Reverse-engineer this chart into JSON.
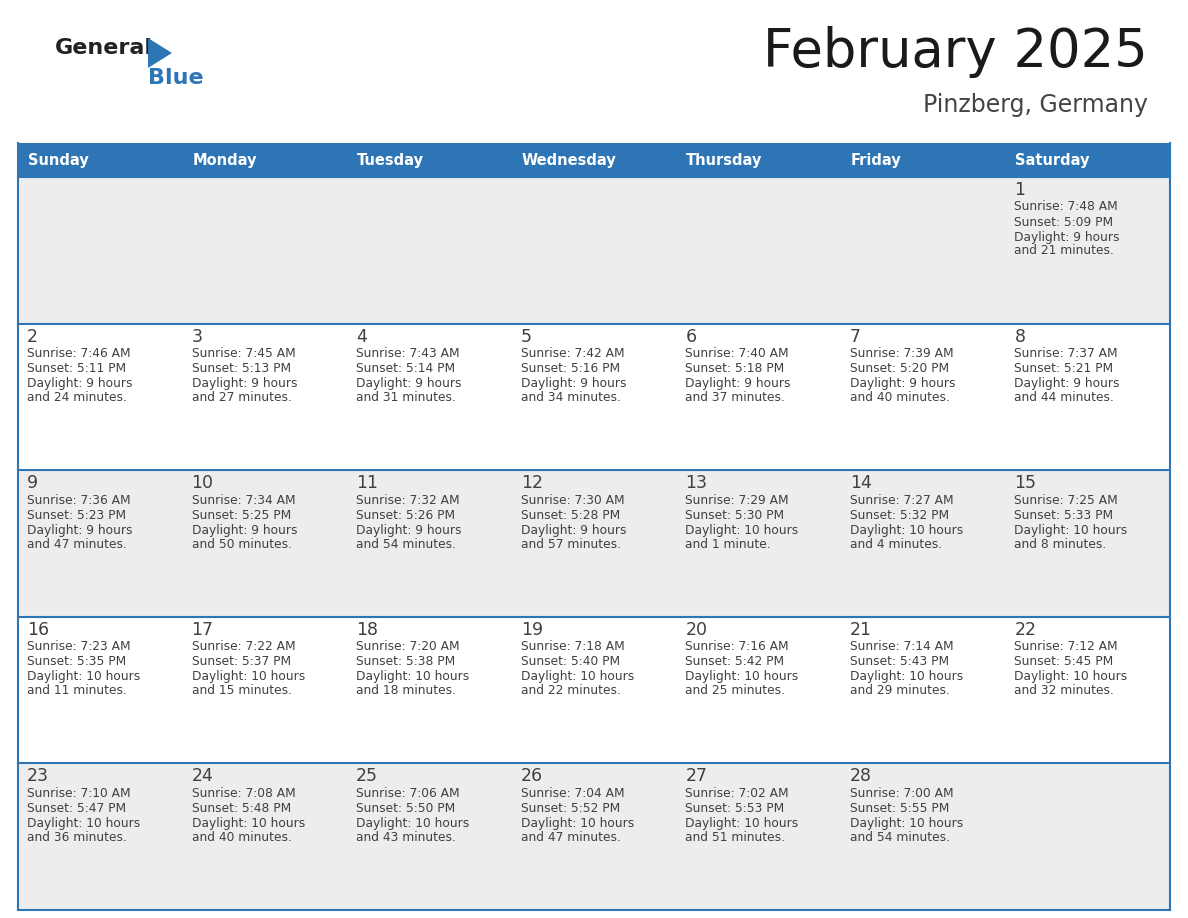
{
  "title": "February 2025",
  "subtitle": "Pinzberg, Germany",
  "header_bg": "#2E75B6",
  "header_text_color": "#FFFFFF",
  "day_names": [
    "Sunday",
    "Monday",
    "Tuesday",
    "Wednesday",
    "Thursday",
    "Friday",
    "Saturday"
  ],
  "cell_bg_odd": "#EDEDED",
  "cell_bg_even": "#FFFFFF",
  "cell_border_color": "#2E75B6",
  "day_num_color": "#404040",
  "info_text_color": "#404040",
  "logo_general_color": "#222222",
  "logo_blue_color": "#2E75B6",
  "calendar": [
    [
      null,
      null,
      null,
      null,
      null,
      null,
      {
        "day": 1,
        "sunrise": "7:48 AM",
        "sunset": "5:09 PM",
        "daylight": "9 hours and 21 minutes."
      }
    ],
    [
      {
        "day": 2,
        "sunrise": "7:46 AM",
        "sunset": "5:11 PM",
        "daylight": "9 hours and 24 minutes."
      },
      {
        "day": 3,
        "sunrise": "7:45 AM",
        "sunset": "5:13 PM",
        "daylight": "9 hours and 27 minutes."
      },
      {
        "day": 4,
        "sunrise": "7:43 AM",
        "sunset": "5:14 PM",
        "daylight": "9 hours and 31 minutes."
      },
      {
        "day": 5,
        "sunrise": "7:42 AM",
        "sunset": "5:16 PM",
        "daylight": "9 hours and 34 minutes."
      },
      {
        "day": 6,
        "sunrise": "7:40 AM",
        "sunset": "5:18 PM",
        "daylight": "9 hours and 37 minutes."
      },
      {
        "day": 7,
        "sunrise": "7:39 AM",
        "sunset": "5:20 PM",
        "daylight": "9 hours and 40 minutes."
      },
      {
        "day": 8,
        "sunrise": "7:37 AM",
        "sunset": "5:21 PM",
        "daylight": "9 hours and 44 minutes."
      }
    ],
    [
      {
        "day": 9,
        "sunrise": "7:36 AM",
        "sunset": "5:23 PM",
        "daylight": "9 hours and 47 minutes."
      },
      {
        "day": 10,
        "sunrise": "7:34 AM",
        "sunset": "5:25 PM",
        "daylight": "9 hours and 50 minutes."
      },
      {
        "day": 11,
        "sunrise": "7:32 AM",
        "sunset": "5:26 PM",
        "daylight": "9 hours and 54 minutes."
      },
      {
        "day": 12,
        "sunrise": "7:30 AM",
        "sunset": "5:28 PM",
        "daylight": "9 hours and 57 minutes."
      },
      {
        "day": 13,
        "sunrise": "7:29 AM",
        "sunset": "5:30 PM",
        "daylight": "10 hours and 1 minute."
      },
      {
        "day": 14,
        "sunrise": "7:27 AM",
        "sunset": "5:32 PM",
        "daylight": "10 hours and 4 minutes."
      },
      {
        "day": 15,
        "sunrise": "7:25 AM",
        "sunset": "5:33 PM",
        "daylight": "10 hours and 8 minutes."
      }
    ],
    [
      {
        "day": 16,
        "sunrise": "7:23 AM",
        "sunset": "5:35 PM",
        "daylight": "10 hours and 11 minutes."
      },
      {
        "day": 17,
        "sunrise": "7:22 AM",
        "sunset": "5:37 PM",
        "daylight": "10 hours and 15 minutes."
      },
      {
        "day": 18,
        "sunrise": "7:20 AM",
        "sunset": "5:38 PM",
        "daylight": "10 hours and 18 minutes."
      },
      {
        "day": 19,
        "sunrise": "7:18 AM",
        "sunset": "5:40 PM",
        "daylight": "10 hours and 22 minutes."
      },
      {
        "day": 20,
        "sunrise": "7:16 AM",
        "sunset": "5:42 PM",
        "daylight": "10 hours and 25 minutes."
      },
      {
        "day": 21,
        "sunrise": "7:14 AM",
        "sunset": "5:43 PM",
        "daylight": "10 hours and 29 minutes."
      },
      {
        "day": 22,
        "sunrise": "7:12 AM",
        "sunset": "5:45 PM",
        "daylight": "10 hours and 32 minutes."
      }
    ],
    [
      {
        "day": 23,
        "sunrise": "7:10 AM",
        "sunset": "5:47 PM",
        "daylight": "10 hours and 36 minutes."
      },
      {
        "day": 24,
        "sunrise": "7:08 AM",
        "sunset": "5:48 PM",
        "daylight": "10 hours and 40 minutes."
      },
      {
        "day": 25,
        "sunrise": "7:06 AM",
        "sunset": "5:50 PM",
        "daylight": "10 hours and 43 minutes."
      },
      {
        "day": 26,
        "sunrise": "7:04 AM",
        "sunset": "5:52 PM",
        "daylight": "10 hours and 47 minutes."
      },
      {
        "day": 27,
        "sunrise": "7:02 AM",
        "sunset": "5:53 PM",
        "daylight": "10 hours and 51 minutes."
      },
      {
        "day": 28,
        "sunrise": "7:00 AM",
        "sunset": "5:55 PM",
        "daylight": "10 hours and 54 minutes."
      },
      null
    ]
  ]
}
